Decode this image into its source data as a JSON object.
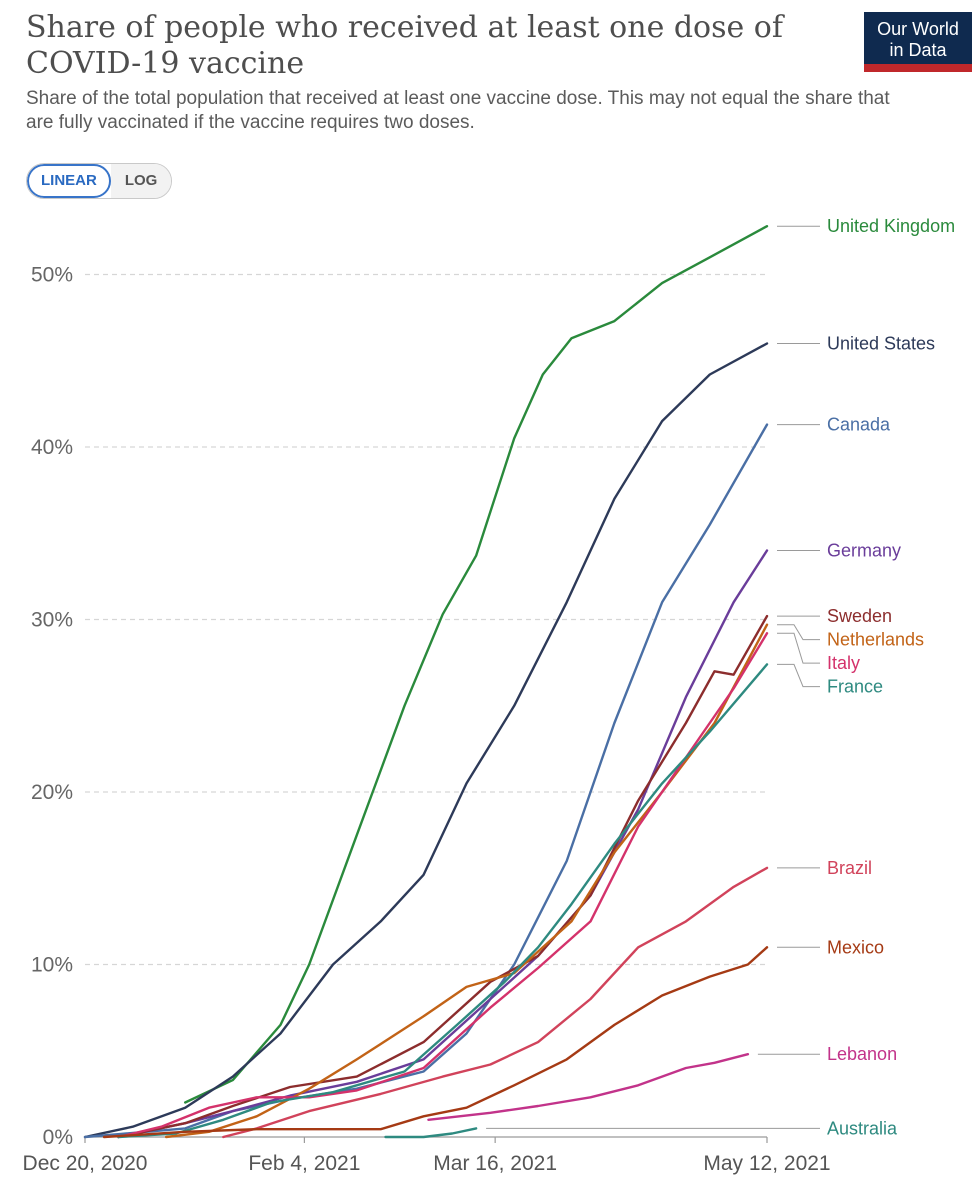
{
  "header": {
    "title": "Share of people who received at least one dose of COVID-19 vaccine",
    "subtitle": "Share of the total population that received at least one vaccine dose. This may not equal the share that are fully vaccinated if the vaccine requires two doses.",
    "logo_line1": "Our World",
    "logo_line2": "in Data"
  },
  "controls": {
    "linear_label": "LINEAR",
    "log_label": "LOG",
    "selected": "linear"
  },
  "chart_data": {
    "type": "line",
    "title": "Share of people who received at least one dose of COVID-19 vaccine",
    "subtitle": "Share of the total population that received at least one vaccine dose. This may not equal the share that are fully vaccinated if the vaccine requires two doses.",
    "x_axis": {
      "type": "date",
      "range": [
        "2020-12-20",
        "2021-05-12"
      ],
      "ticks": [
        "2020-12-20",
        "2021-02-04",
        "2021-03-16",
        "2021-05-12"
      ],
      "tick_labels": [
        "Dec 20, 2020",
        "Feb 4, 2021",
        "Mar 16, 2021",
        "May 12, 2021"
      ]
    },
    "y_axis": {
      "range": [
        0,
        52.8
      ],
      "ticks": [
        0,
        10,
        20,
        30,
        40,
        50
      ],
      "tick_labels": [
        "0%",
        "10%",
        "20%",
        "30%",
        "40%",
        "50%"
      ],
      "unit": "%"
    },
    "grid": "horizontal dashed",
    "legend": "line-end labels on right",
    "series": [
      {
        "name": "United Kingdom",
        "color": "#2a8a3c",
        "points": [
          [
            "2021-01-10",
            2.0
          ],
          [
            "2021-01-20",
            3.3
          ],
          [
            "2021-01-30",
            6.5
          ],
          [
            "2021-02-05",
            10.0
          ],
          [
            "2021-02-15",
            17.5
          ],
          [
            "2021-02-25",
            25.0
          ],
          [
            "2021-03-05",
            30.3
          ],
          [
            "2021-03-12",
            33.7
          ],
          [
            "2021-03-20",
            40.5
          ],
          [
            "2021-03-26",
            44.2
          ],
          [
            "2021-04-01",
            46.3
          ],
          [
            "2021-04-10",
            47.3
          ],
          [
            "2021-04-20",
            49.5
          ],
          [
            "2021-04-30",
            51.0
          ],
          [
            "2021-05-12",
            52.8
          ]
        ]
      },
      {
        "name": "United States",
        "color": "#2d3a59",
        "points": [
          [
            "2020-12-20",
            0.0
          ],
          [
            "2020-12-30",
            0.6
          ],
          [
            "2021-01-10",
            1.7
          ],
          [
            "2021-01-20",
            3.5
          ],
          [
            "2021-01-30",
            6.0
          ],
          [
            "2021-02-10",
            10.0
          ],
          [
            "2021-02-20",
            12.5
          ],
          [
            "2021-03-01",
            15.2
          ],
          [
            "2021-03-10",
            20.5
          ],
          [
            "2021-03-20",
            25.0
          ],
          [
            "2021-03-31",
            31.0
          ],
          [
            "2021-04-10",
            37.0
          ],
          [
            "2021-04-20",
            41.5
          ],
          [
            "2021-04-30",
            44.2
          ],
          [
            "2021-05-12",
            46.0
          ]
        ]
      },
      {
        "name": "Canada",
        "color": "#4a6fa5",
        "points": [
          [
            "2020-12-20",
            0.0
          ],
          [
            "2021-01-10",
            0.5
          ],
          [
            "2021-01-20",
            1.5
          ],
          [
            "2021-02-01",
            2.2
          ],
          [
            "2021-02-15",
            2.8
          ],
          [
            "2021-03-01",
            3.8
          ],
          [
            "2021-03-10",
            6.0
          ],
          [
            "2021-03-20",
            10.0
          ],
          [
            "2021-03-31",
            16.0
          ],
          [
            "2021-04-10",
            24.0
          ],
          [
            "2021-04-20",
            31.0
          ],
          [
            "2021-04-30",
            35.5
          ],
          [
            "2021-05-12",
            41.3
          ]
        ]
      },
      {
        "name": "Germany",
        "color": "#6a3d9a",
        "points": [
          [
            "2020-12-27",
            0.0
          ],
          [
            "2021-01-10",
            0.8
          ],
          [
            "2021-01-20",
            1.5
          ],
          [
            "2021-02-01",
            2.4
          ],
          [
            "2021-02-15",
            3.2
          ],
          [
            "2021-03-01",
            4.5
          ],
          [
            "2021-03-15",
            8.0
          ],
          [
            "2021-03-25",
            10.5
          ],
          [
            "2021-04-05",
            14.0
          ],
          [
            "2021-04-15",
            19.0
          ],
          [
            "2021-04-25",
            25.5
          ],
          [
            "2021-05-05",
            31.0
          ],
          [
            "2021-05-12",
            34.0
          ]
        ]
      },
      {
        "name": "Sweden",
        "color": "#8c2d2d",
        "points": [
          [
            "2020-12-27",
            0.0
          ],
          [
            "2021-01-10",
            0.8
          ],
          [
            "2021-01-20",
            1.8
          ],
          [
            "2021-02-01",
            2.9
          ],
          [
            "2021-02-15",
            3.5
          ],
          [
            "2021-03-01",
            5.5
          ],
          [
            "2021-03-15",
            9.0
          ],
          [
            "2021-03-25",
            10.5
          ],
          [
            "2021-04-05",
            14.0
          ],
          [
            "2021-04-15",
            19.5
          ],
          [
            "2021-04-25",
            24.0
          ],
          [
            "2021-05-01",
            27.0
          ],
          [
            "2021-05-05",
            26.8
          ],
          [
            "2021-05-12",
            30.2
          ]
        ]
      },
      {
        "name": "Netherlands",
        "color": "#c26317",
        "points": [
          [
            "2021-01-06",
            0.0
          ],
          [
            "2021-01-15",
            0.3
          ],
          [
            "2021-01-25",
            1.2
          ],
          [
            "2021-02-05",
            2.8
          ],
          [
            "2021-02-15",
            4.5
          ],
          [
            "2021-03-01",
            7.0
          ],
          [
            "2021-03-10",
            8.7
          ],
          [
            "2021-03-20",
            9.5
          ],
          [
            "2021-04-01",
            12.5
          ],
          [
            "2021-04-10",
            16.5
          ],
          [
            "2021-04-20",
            20.0
          ],
          [
            "2021-05-01",
            24.0
          ],
          [
            "2021-05-12",
            29.7
          ]
        ]
      },
      {
        "name": "Italy",
        "color": "#d4326b",
        "points": [
          [
            "2020-12-27",
            0.0
          ],
          [
            "2021-01-05",
            0.6
          ],
          [
            "2021-01-15",
            1.7
          ],
          [
            "2021-01-25",
            2.3
          ],
          [
            "2021-02-05",
            2.3
          ],
          [
            "2021-02-15",
            2.7
          ],
          [
            "2021-03-01",
            4.0
          ],
          [
            "2021-03-15",
            7.5
          ],
          [
            "2021-03-25",
            9.8
          ],
          [
            "2021-04-05",
            12.5
          ],
          [
            "2021-04-15",
            18.0
          ],
          [
            "2021-04-25",
            22.0
          ],
          [
            "2021-05-05",
            26.0
          ],
          [
            "2021-05-12",
            29.2
          ]
        ]
      },
      {
        "name": "France",
        "color": "#2e8a80",
        "points": [
          [
            "2020-12-27",
            0.0
          ],
          [
            "2021-01-08",
            0.2
          ],
          [
            "2021-01-18",
            1.0
          ],
          [
            "2021-01-28",
            2.0
          ],
          [
            "2021-02-10",
            2.6
          ],
          [
            "2021-02-25",
            3.8
          ],
          [
            "2021-03-08",
            6.5
          ],
          [
            "2021-03-18",
            9.0
          ],
          [
            "2021-03-25",
            11.0
          ],
          [
            "2021-04-01",
            13.5
          ],
          [
            "2021-04-10",
            17.0
          ],
          [
            "2021-04-20",
            20.5
          ],
          [
            "2021-04-30",
            23.5
          ],
          [
            "2021-05-12",
            27.4
          ]
        ]
      },
      {
        "name": "Brazil",
        "color": "#d1435b",
        "points": [
          [
            "2021-01-18",
            0.0
          ],
          [
            "2021-01-25",
            0.5
          ],
          [
            "2021-02-05",
            1.5
          ],
          [
            "2021-02-20",
            2.5
          ],
          [
            "2021-03-05",
            3.5
          ],
          [
            "2021-03-15",
            4.2
          ],
          [
            "2021-03-25",
            5.5
          ],
          [
            "2021-04-05",
            8.0
          ],
          [
            "2021-04-15",
            11.0
          ],
          [
            "2021-04-25",
            12.5
          ],
          [
            "2021-05-05",
            14.5
          ],
          [
            "2021-05-12",
            15.6
          ]
        ]
      },
      {
        "name": "Mexico",
        "color": "#a53a14",
        "points": [
          [
            "2020-12-24",
            0.0
          ],
          [
            "2021-01-10",
            0.3
          ],
          [
            "2021-01-25",
            0.45
          ],
          [
            "2021-02-10",
            0.45
          ],
          [
            "2021-02-20",
            0.45
          ],
          [
            "2021-03-01",
            1.2
          ],
          [
            "2021-03-10",
            1.7
          ],
          [
            "2021-03-20",
            3.0
          ],
          [
            "2021-03-31",
            4.5
          ],
          [
            "2021-04-10",
            6.5
          ],
          [
            "2021-04-20",
            8.2
          ],
          [
            "2021-04-30",
            9.3
          ],
          [
            "2021-05-08",
            10.0
          ],
          [
            "2021-05-12",
            11.0
          ]
        ]
      },
      {
        "name": "Lebanon",
        "color": "#c2338a",
        "points": [
          [
            "2021-03-02",
            1.0
          ],
          [
            "2021-03-15",
            1.4
          ],
          [
            "2021-03-25",
            1.8
          ],
          [
            "2021-04-05",
            2.3
          ],
          [
            "2021-04-15",
            3.0
          ],
          [
            "2021-04-25",
            4.0
          ],
          [
            "2021-05-01",
            4.3
          ],
          [
            "2021-05-08",
            4.8
          ]
        ]
      },
      {
        "name": "Australia",
        "color": "#2e8a80",
        "points": [
          [
            "2021-02-21",
            0.0
          ],
          [
            "2021-03-01",
            0.0
          ],
          [
            "2021-03-07",
            0.2
          ],
          [
            "2021-03-12",
            0.5
          ]
        ]
      }
    ]
  }
}
